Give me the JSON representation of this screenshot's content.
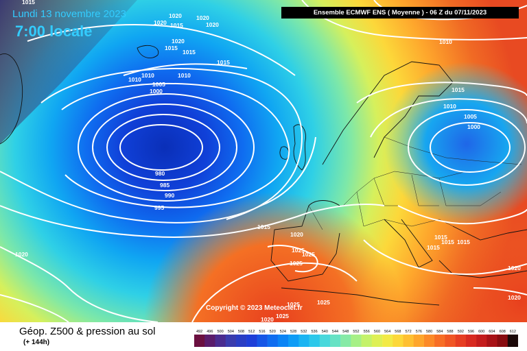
{
  "date_line": "Lundi 13 novembre 2023",
  "time_line": "7:00 locale",
  "header": "Ensemble ECMWF ENS  ( Moyenne )  -  06 Z du 07/11/2023",
  "copyright": "Copyright © 2023 Meteociel.fr",
  "footer": {
    "title": "Géop. Z500 & pression au sol",
    "subtitle": "(+ 144h)"
  },
  "colorbar": {
    "ticks": [
      "492",
      "496",
      "500",
      "504",
      "508",
      "512",
      "516",
      "520",
      "524",
      "528",
      "532",
      "536",
      "540",
      "544",
      "548",
      "552",
      "556",
      "560",
      "564",
      "568",
      "572",
      "576",
      "580",
      "584",
      "588",
      "592",
      "596",
      "600",
      "604",
      "608",
      "612"
    ],
    "colors": [
      "#6b1040",
      "#5a1c6b",
      "#4a2c8f",
      "#3a3cad",
      "#2a3ec4",
      "#1e3fd8",
      "#1656e6",
      "#0f6df0",
      "#0b84f5",
      "#0e9cf6",
      "#1ab4f2",
      "#2dc8ea",
      "#48d8dc",
      "#66e2c4",
      "#86eaa6",
      "#a6f086",
      "#c4f26a",
      "#def055",
      "#f2ea46",
      "#fcd83a",
      "#fec032",
      "#fea62c",
      "#fc8a28",
      "#f76e26",
      "#f05624",
      "#e63e22",
      "#d82a20",
      "#c41c1c",
      "#a81216",
      "#880c10",
      "#1a0808"
    ]
  },
  "isobar_labels": [
    "1020",
    "1015",
    "1020",
    "1020",
    "1015",
    "1010",
    "1010",
    "1010",
    "1005",
    "1000",
    "980",
    "985",
    "990",
    "995",
    "1015",
    "1020",
    "1025",
    "1025",
    "1020",
    "1025",
    "1025",
    "1020",
    "1015",
    "1010",
    "1005",
    "1000",
    "1015",
    "1015",
    "1015",
    "1020",
    "1020",
    "1015",
    "1010",
    "1015",
    "1015",
    "1020"
  ]
}
